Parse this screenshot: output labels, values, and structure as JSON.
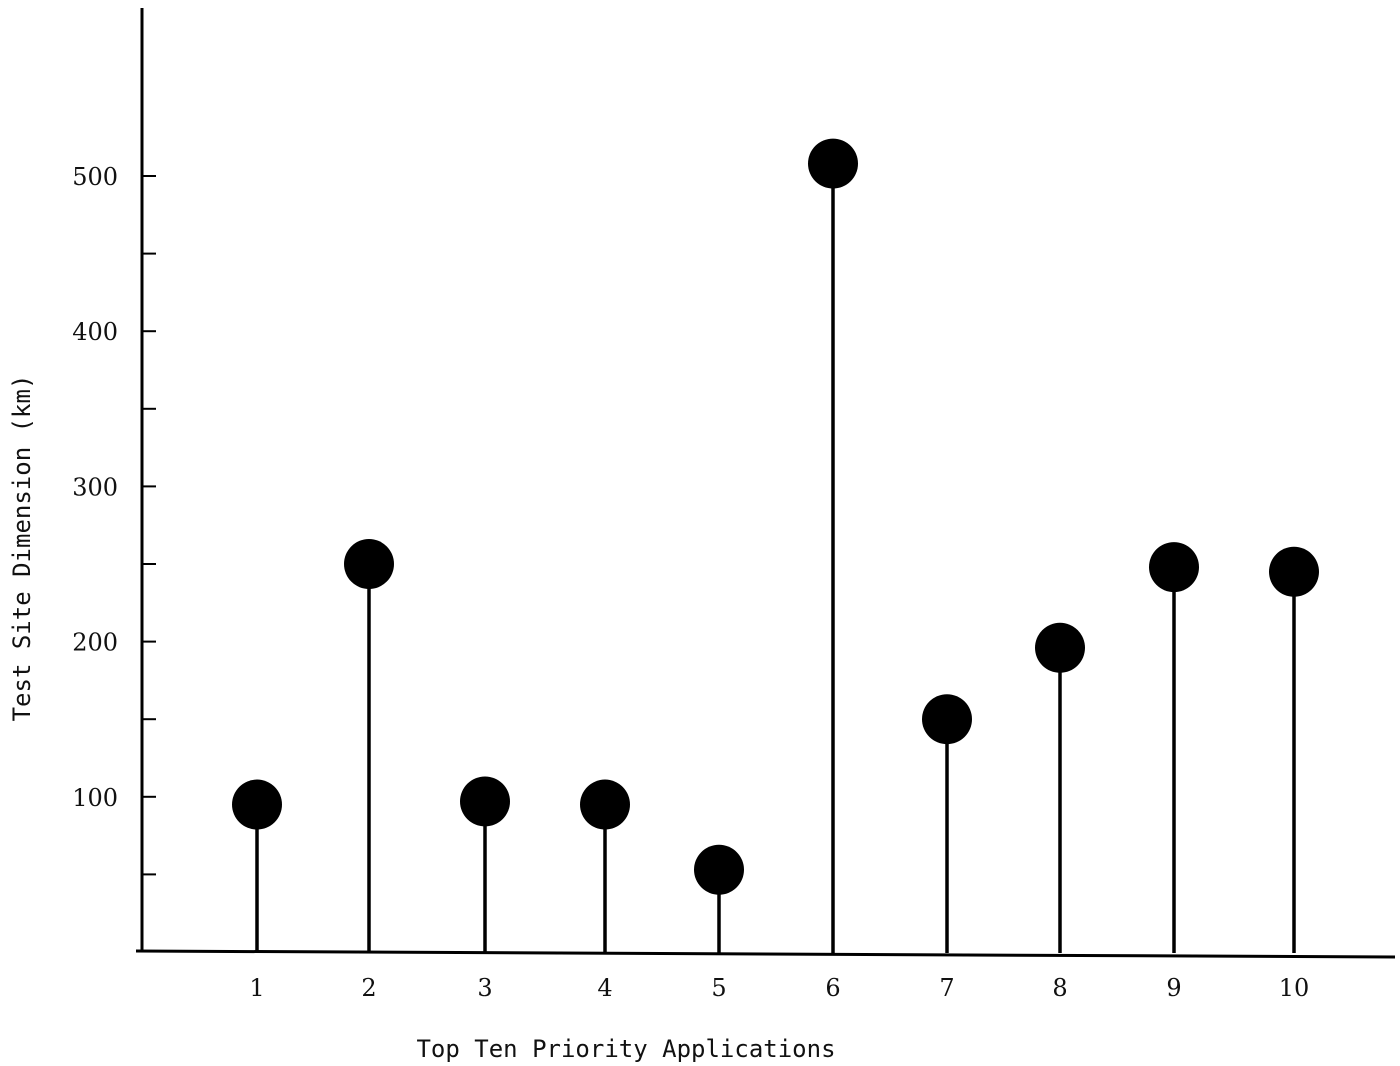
{
  "chart_data": {
    "type": "scatter",
    "style": "lollipop",
    "title": "",
    "xlabel": "Top Ten Priority Applications",
    "ylabel": "Test Site Dimension (km)",
    "categories": [
      "1",
      "2",
      "3",
      "4",
      "5",
      "6",
      "7",
      "8",
      "9",
      "10"
    ],
    "values": [
      95,
      250,
      97,
      95,
      53,
      508,
      150,
      196,
      248,
      245
    ],
    "ylim": [
      0,
      600
    ],
    "yticks": [
      100,
      200,
      300,
      400,
      500
    ],
    "yticks_minor": [
      50,
      150,
      250,
      350,
      450
    ],
    "grid": false,
    "legend": "none",
    "colors": {
      "marker": "#000000",
      "axis": "#000000"
    }
  }
}
